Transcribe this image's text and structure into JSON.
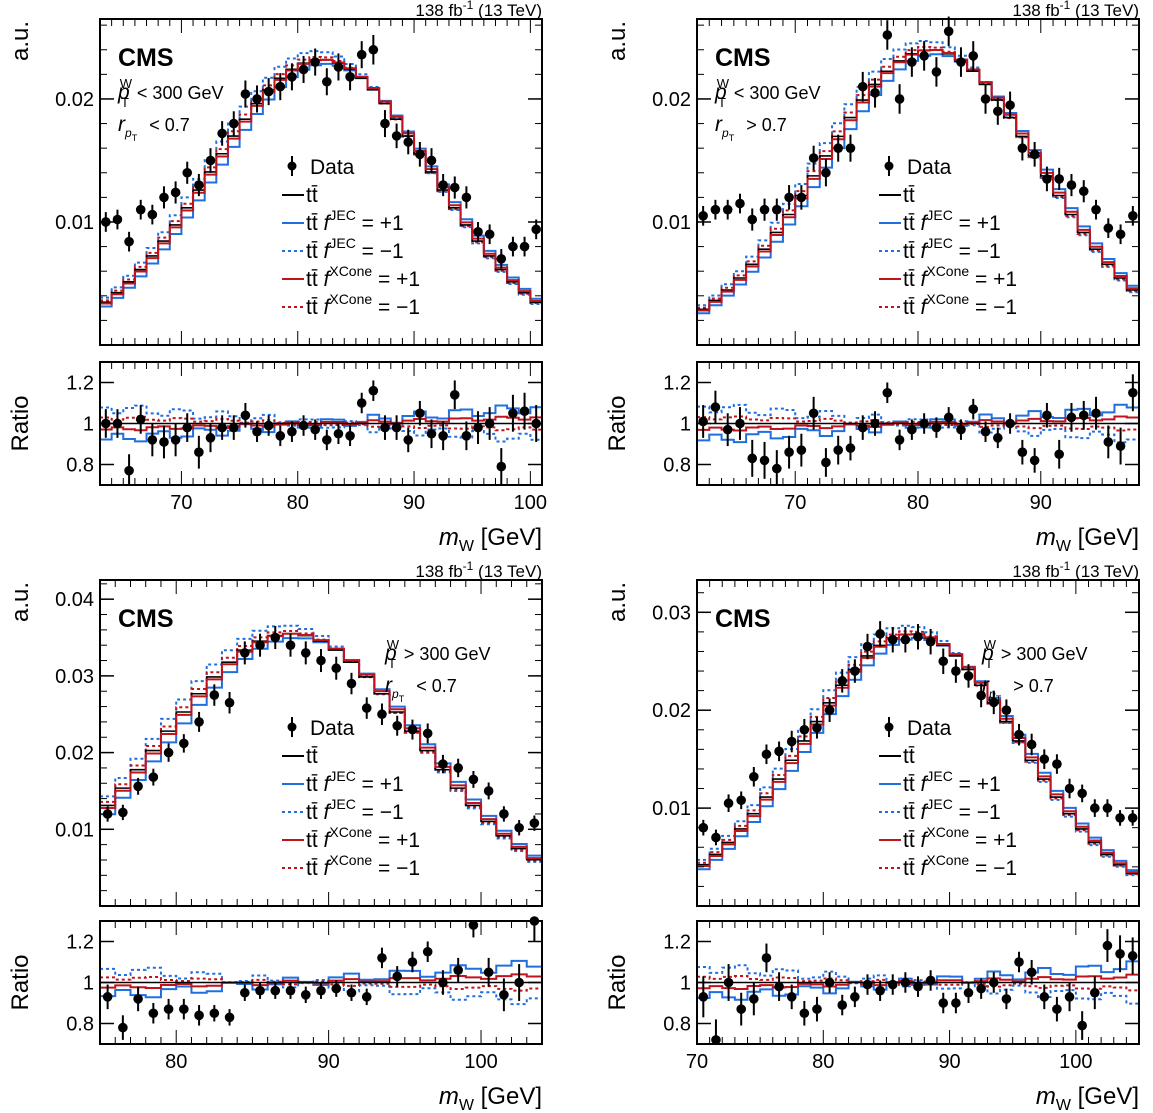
{
  "colors": {
    "data": "#000000",
    "nominal": "#000000",
    "jec": "#1f6fe0",
    "xcone": "#c0141c"
  },
  "figure": {
    "lumi_label": "138 fb",
    "lumi_sup": "-1",
    "lumi_energy": " (13 TeV)",
    "cms_label": "CMS",
    "y_label_main": "a.u.",
    "y_label_ratio": "Ratio",
    "x_label": "m",
    "x_label_sub": "W",
    "x_label_unit": " [GeV]",
    "legend": {
      "data": "Data",
      "nominal": "tt̄",
      "jec_up": "tt̄ f^JEC = +1",
      "jec_down": "tt̄ f^JEC = −1",
      "xcone_up": "tt̄ f^XCone = +1",
      "xcone_down": "tt̄ f^XCone = −1"
    }
  },
  "chart_data": [
    {
      "type": "line",
      "panel": "top-left",
      "cut_pt": "< 300 GeV",
      "cut_r": "< 0.7",
      "xlim": [
        63,
        101
      ],
      "ylim": [
        0.0,
        0.0265
      ],
      "y_ticks": [
        0.01,
        0.02
      ],
      "x_ticks": [
        70,
        80,
        90,
        100
      ],
      "ratio_ylim": [
        0.7,
        1.3
      ],
      "ratio_ticks": [
        0.8,
        1,
        1.2
      ],
      "bin_width": 1.0,
      "x": [
        63.5,
        64.5,
        65.5,
        66.5,
        67.5,
        68.5,
        69.5,
        70.5,
        71.5,
        72.5,
        73.5,
        74.5,
        75.5,
        76.5,
        77.5,
        78.5,
        79.5,
        80.5,
        81.5,
        82.5,
        83.5,
        84.5,
        85.5,
        86.5,
        87.5,
        88.5,
        89.5,
        90.5,
        91.5,
        92.5,
        93.5,
        94.5,
        95.5,
        96.5,
        97.5,
        98.5,
        99.5,
        100.5
      ],
      "data": [
        0.01,
        0.0102,
        0.0084,
        0.011,
        0.0106,
        0.012,
        0.0124,
        0.014,
        0.013,
        0.015,
        0.0172,
        0.018,
        0.0204,
        0.02,
        0.0206,
        0.021,
        0.0218,
        0.0224,
        0.023,
        0.0214,
        0.0226,
        0.0218,
        0.0236,
        0.024,
        0.018,
        0.017,
        0.0165,
        0.0155,
        0.015,
        0.013,
        0.0128,
        0.012,
        0.0092,
        0.009,
        0.007,
        0.008,
        0.008,
        0.0094
      ],
      "data_err": [
        0.0008,
        0.0008,
        0.0008,
        0.0008,
        0.0008,
        0.0009,
        0.0009,
        0.0009,
        0.0009,
        0.001,
        0.001,
        0.001,
        0.0011,
        0.0011,
        0.0011,
        0.0011,
        0.0011,
        0.0011,
        0.0011,
        0.0011,
        0.0011,
        0.0011,
        0.0011,
        0.0012,
        0.0011,
        0.001,
        0.001,
        0.001,
        0.001,
        0.0009,
        0.0009,
        0.0009,
        0.0008,
        0.0008,
        0.0008,
        0.0008,
        0.0008,
        0.0008
      ],
      "mc_peak": 0.0232,
      "mc_mean": 82.0,
      "mc_sigma": 9.5,
      "mc_base": 0.0,
      "ratio_data": [
        1.0,
        1.0,
        0.77,
        1.02,
        0.92,
        0.91,
        0.92,
        0.98,
        0.86,
        0.93,
        0.98,
        0.98,
        1.04,
        0.96,
        0.99,
        0.94,
        0.96,
        0.99,
        0.97,
        0.92,
        0.95,
        0.94,
        1.1,
        1.16,
        0.98,
        0.98,
        0.92,
        1.05,
        0.95,
        0.94,
        1.14,
        0.94,
        0.98,
        1.0,
        0.79,
        1.05,
        1.06,
        1.0
      ],
      "ratio_err": [
        0.07,
        0.07,
        0.08,
        0.07,
        0.08,
        0.08,
        0.08,
        0.07,
        0.08,
        0.07,
        0.06,
        0.06,
        0.06,
        0.05,
        0.05,
        0.05,
        0.05,
        0.05,
        0.05,
        0.05,
        0.05,
        0.05,
        0.05,
        0.05,
        0.06,
        0.06,
        0.06,
        0.06,
        0.07,
        0.07,
        0.07,
        0.07,
        0.08,
        0.08,
        0.09,
        0.09,
        0.09,
        0.09
      ]
    },
    {
      "type": "line",
      "panel": "top-right",
      "cut_pt": "< 300 GeV",
      "cut_r": "> 0.7",
      "xlim": [
        62,
        98
      ],
      "ylim": [
        0.0,
        0.0265
      ],
      "y_ticks": [
        0.01,
        0.02
      ],
      "x_ticks": [
        70,
        80,
        90
      ],
      "ratio_ylim": [
        0.7,
        1.3
      ],
      "ratio_ticks": [
        0.8,
        1,
        1.2
      ],
      "bin_width": 1.0,
      "x": [
        62.5,
        63.5,
        64.5,
        65.5,
        66.5,
        67.5,
        68.5,
        69.5,
        70.5,
        71.5,
        72.5,
        73.5,
        74.5,
        75.5,
        76.5,
        77.5,
        78.5,
        79.5,
        80.5,
        81.5,
        82.5,
        83.5,
        84.5,
        85.5,
        86.5,
        87.5,
        88.5,
        89.5,
        90.5,
        91.5,
        92.5,
        93.5,
        94.5,
        95.5,
        96.5,
        97.5
      ],
      "data": [
        0.0105,
        0.011,
        0.011,
        0.0115,
        0.0102,
        0.011,
        0.011,
        0.012,
        0.012,
        0.0152,
        0.014,
        0.016,
        0.016,
        0.021,
        0.0205,
        0.0252,
        0.02,
        0.023,
        0.0235,
        0.0222,
        0.0255,
        0.023,
        0.0235,
        0.02,
        0.019,
        0.0195,
        0.016,
        0.0155,
        0.0135,
        0.0135,
        0.013,
        0.0125,
        0.011,
        0.0095,
        0.009,
        0.0105
      ],
      "data_err": [
        0.0008,
        0.0008,
        0.0008,
        0.0008,
        0.0009,
        0.0009,
        0.0009,
        0.001,
        0.001,
        0.001,
        0.0011,
        0.0011,
        0.0011,
        0.0012,
        0.0012,
        0.0012,
        0.0012,
        0.0012,
        0.0012,
        0.0012,
        0.0012,
        0.0012,
        0.0012,
        0.0012,
        0.0011,
        0.0011,
        0.001,
        0.001,
        0.001,
        0.0009,
        0.0009,
        0.0009,
        0.0008,
        0.0008,
        0.0008,
        0.0008
      ],
      "mc_peak": 0.024,
      "mc_mean": 81.0,
      "mc_sigma": 9.0,
      "mc_base": 0.0,
      "ratio_data": [
        1.01,
        1.08,
        0.97,
        1.0,
        0.83,
        0.82,
        0.78,
        0.86,
        0.87,
        1.05,
        0.81,
        0.87,
        0.88,
        0.98,
        1.0,
        1.15,
        0.92,
        0.97,
        1.0,
        0.98,
        1.03,
        0.97,
        1.07,
        0.96,
        0.93,
        1.0,
        0.86,
        0.82,
        1.04,
        0.85,
        1.03,
        1.04,
        1.05,
        0.91,
        0.89,
        1.15
      ],
      "ratio_err": [
        0.08,
        0.08,
        0.08,
        0.08,
        0.09,
        0.09,
        0.09,
        0.08,
        0.08,
        0.08,
        0.07,
        0.07,
        0.06,
        0.06,
        0.06,
        0.05,
        0.05,
        0.05,
        0.05,
        0.05,
        0.05,
        0.05,
        0.05,
        0.05,
        0.05,
        0.05,
        0.06,
        0.06,
        0.06,
        0.07,
        0.07,
        0.07,
        0.08,
        0.08,
        0.09,
        0.09
      ]
    },
    {
      "type": "line",
      "panel": "bottom-left",
      "cut_pt": "> 300 GeV",
      "cut_r": "< 0.7",
      "xlim": [
        75,
        104
      ],
      "ylim": [
        0.0,
        0.0425
      ],
      "y_ticks": [
        0.01,
        0.02,
        0.03,
        0.04
      ],
      "x_ticks": [
        80,
        90,
        100
      ],
      "ratio_ylim": [
        0.7,
        1.3
      ],
      "ratio_ticks": [
        0.8,
        1,
        1.2
      ],
      "bin_width": 1.0,
      "x": [
        75.5,
        76.5,
        77.5,
        78.5,
        79.5,
        80.5,
        81.5,
        82.5,
        83.5,
        84.5,
        85.5,
        86.5,
        87.5,
        88.5,
        89.5,
        90.5,
        91.5,
        92.5,
        93.5,
        94.5,
        95.5,
        96.5,
        97.5,
        98.5,
        99.5,
        100.5,
        101.5,
        102.5,
        103.5
      ],
      "data": [
        0.012,
        0.0122,
        0.0156,
        0.0168,
        0.02,
        0.0212,
        0.024,
        0.0275,
        0.0265,
        0.033,
        0.034,
        0.035,
        0.034,
        0.033,
        0.032,
        0.031,
        0.029,
        0.0258,
        0.025,
        0.0235,
        0.023,
        0.0225,
        0.0185,
        0.018,
        0.0165,
        0.015,
        0.012,
        0.0102,
        0.0108
      ],
      "data_err": [
        0.001,
        0.001,
        0.0011,
        0.0011,
        0.0012,
        0.0012,
        0.0013,
        0.0014,
        0.0014,
        0.0015,
        0.0015,
        0.0015,
        0.0015,
        0.0015,
        0.0015,
        0.0015,
        0.0014,
        0.0014,
        0.0014,
        0.0013,
        0.0013,
        0.0013,
        0.0012,
        0.0012,
        0.0011,
        0.0011,
        0.001,
        0.001,
        0.001
      ],
      "mc_peak": 0.0355,
      "mc_mean": 87.5,
      "mc_sigma": 8.5,
      "mc_base": 0.0,
      "ratio_data": [
        0.93,
        0.78,
        0.92,
        0.85,
        0.87,
        0.87,
        0.84,
        0.85,
        0.83,
        0.95,
        0.96,
        0.96,
        0.96,
        0.94,
        0.96,
        0.97,
        0.95,
        0.93,
        1.12,
        1.03,
        1.1,
        1.15,
        1.0,
        1.06,
        1.28,
        1.05,
        0.94,
        1.0,
        1.3
      ],
      "ratio_err": [
        0.06,
        0.06,
        0.06,
        0.05,
        0.05,
        0.05,
        0.05,
        0.04,
        0.04,
        0.04,
        0.04,
        0.04,
        0.04,
        0.04,
        0.04,
        0.04,
        0.04,
        0.04,
        0.05,
        0.05,
        0.05,
        0.05,
        0.06,
        0.06,
        0.06,
        0.07,
        0.08,
        0.09,
        0.1
      ]
    },
    {
      "type": "line",
      "panel": "bottom-right",
      "cut_pt": "> 300 GeV",
      "cut_r": "> 0.7",
      "xlim": [
        70,
        105
      ],
      "ylim": [
        0.0,
        0.0333
      ],
      "y_ticks": [
        0.01,
        0.02,
        0.03
      ],
      "x_ticks": [
        70,
        80,
        90,
        100
      ],
      "ratio_ylim": [
        0.7,
        1.3
      ],
      "ratio_ticks": [
        0.8,
        1,
        1.2
      ],
      "bin_width": 1.0,
      "x": [
        70.5,
        71.5,
        72.5,
        73.5,
        74.5,
        75.5,
        76.5,
        77.5,
        78.5,
        79.5,
        80.5,
        81.5,
        82.5,
        83.5,
        84.5,
        85.5,
        86.5,
        87.5,
        88.5,
        89.5,
        90.5,
        91.5,
        92.5,
        93.5,
        94.5,
        95.5,
        96.5,
        97.5,
        98.5,
        99.5,
        100.5,
        101.5,
        102.5,
        103.5,
        104.5
      ],
      "data": [
        0.008,
        0.007,
        0.0105,
        0.0108,
        0.0132,
        0.0155,
        0.0158,
        0.0168,
        0.018,
        0.0182,
        0.02,
        0.023,
        0.024,
        0.0265,
        0.0278,
        0.0272,
        0.0272,
        0.0275,
        0.027,
        0.025,
        0.024,
        0.0235,
        0.0215,
        0.0208,
        0.02,
        0.0175,
        0.0165,
        0.015,
        0.0145,
        0.012,
        0.0115,
        0.01,
        0.01,
        0.009,
        0.009
      ],
      "data_err": [
        0.0008,
        0.0008,
        0.0009,
        0.0009,
        0.001,
        0.001,
        0.001,
        0.0011,
        0.0011,
        0.0011,
        0.0012,
        0.0012,
        0.0012,
        0.0013,
        0.0013,
        0.0013,
        0.0013,
        0.0013,
        0.0013,
        0.0013,
        0.0012,
        0.0012,
        0.0012,
        0.0012,
        0.0011,
        0.0011,
        0.0011,
        0.001,
        0.001,
        0.001,
        0.0009,
        0.0009,
        0.0009,
        0.0008,
        0.0008
      ],
      "mc_peak": 0.0278,
      "mc_mean": 87.0,
      "mc_sigma": 8.5,
      "mc_base": 0.0,
      "ratio_data": [
        0.93,
        0.72,
        1.0,
        0.87,
        0.92,
        1.12,
        0.98,
        0.93,
        0.85,
        0.87,
        1.0,
        0.89,
        0.93,
        0.99,
        0.96,
        0.99,
        1.0,
        0.98,
        1.01,
        0.9,
        0.9,
        0.95,
        0.97,
        1.0,
        0.92,
        1.1,
        1.05,
        0.93,
        0.87,
        0.93,
        0.79,
        0.95,
        1.18,
        1.14,
        1.13
      ],
      "ratio_err": [
        0.1,
        0.1,
        0.09,
        0.08,
        0.08,
        0.07,
        0.07,
        0.06,
        0.06,
        0.06,
        0.05,
        0.05,
        0.05,
        0.05,
        0.05,
        0.05,
        0.05,
        0.05,
        0.05,
        0.05,
        0.05,
        0.05,
        0.05,
        0.05,
        0.05,
        0.05,
        0.06,
        0.06,
        0.06,
        0.07,
        0.07,
        0.08,
        0.08,
        0.09,
        0.09
      ]
    }
  ]
}
